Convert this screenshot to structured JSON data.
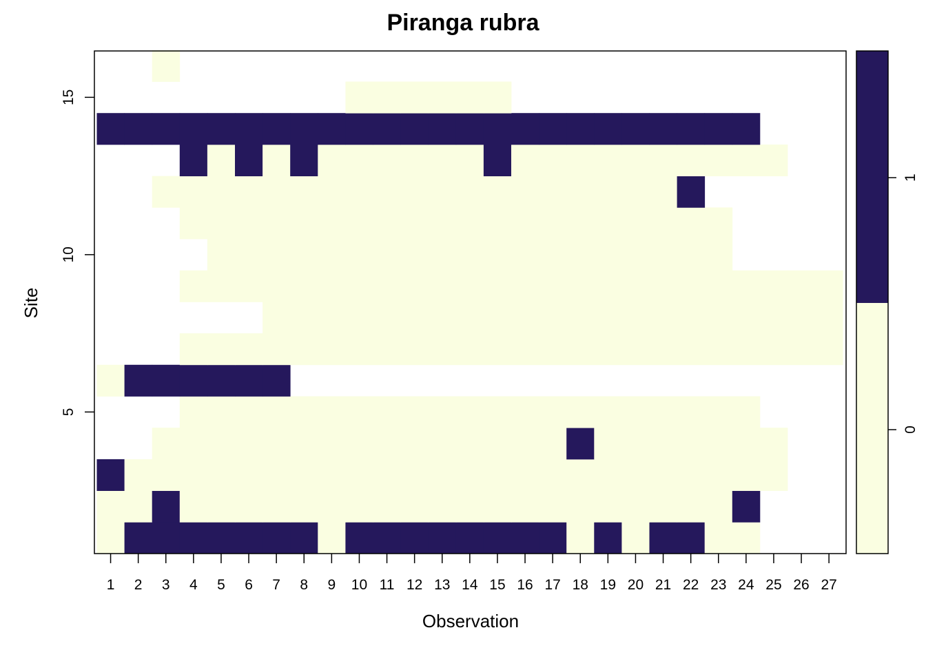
{
  "chart_data": {
    "type": "heatmap",
    "title": "Piranga rubra",
    "xlabel": "Observation",
    "ylabel": "Site",
    "x_categories": [
      1,
      2,
      3,
      4,
      5,
      6,
      7,
      8,
      9,
      10,
      11,
      12,
      13,
      14,
      15,
      16,
      17,
      18,
      19,
      20,
      21,
      22,
      23,
      24,
      25,
      26,
      27
    ],
    "x_tick_labels": [
      "1",
      "2",
      "3",
      "4",
      "5",
      "6",
      "7",
      "8",
      "9",
      "10",
      "11",
      "12",
      "13",
      "14",
      "15",
      "16",
      "17",
      "18",
      "19",
      "20",
      "21",
      "22",
      "23",
      "24",
      "25",
      "26",
      "27"
    ],
    "y_range": [
      1,
      16
    ],
    "y_tick_values": [
      5,
      10,
      15
    ],
    "y_tick_labels": [
      "5",
      "10",
      "15"
    ],
    "colors": {
      "0": "#FAFEE1",
      "1": "#25185C",
      "missing": "#FFFFFF"
    },
    "legend": {
      "placement": "right",
      "ticks": [
        {
          "value": 0,
          "label": "0"
        },
        {
          "value": 1,
          "label": "1"
        }
      ]
    },
    "grid": false,
    "note_values": "rows listed by site 1..16; null = not observed (blank)",
    "values": [
      [
        0,
        1,
        1,
        1,
        1,
        1,
        1,
        1,
        0,
        1,
        1,
        1,
        1,
        1,
        1,
        1,
        1,
        0,
        1,
        0,
        1,
        1,
        0,
        0,
        null,
        null,
        null
      ],
      [
        0,
        0,
        1,
        0,
        0,
        0,
        0,
        0,
        0,
        0,
        0,
        0,
        0,
        0,
        0,
        0,
        0,
        0,
        0,
        0,
        0,
        0,
        0,
        1,
        null,
        null,
        null
      ],
      [
        1,
        0,
        0,
        0,
        0,
        0,
        0,
        0,
        0,
        0,
        0,
        0,
        0,
        0,
        0,
        0,
        0,
        0,
        0,
        0,
        0,
        0,
        0,
        0,
        0,
        null,
        null
      ],
      [
        null,
        null,
        0,
        0,
        0,
        0,
        0,
        0,
        0,
        0,
        0,
        0,
        0,
        0,
        0,
        0,
        0,
        1,
        0,
        0,
        0,
        0,
        0,
        0,
        0,
        null,
        null
      ],
      [
        null,
        null,
        null,
        0,
        0,
        0,
        0,
        0,
        0,
        0,
        0,
        0,
        0,
        0,
        0,
        0,
        0,
        0,
        0,
        0,
        0,
        0,
        0,
        0,
        null,
        null,
        null
      ],
      [
        0,
        1,
        1,
        1,
        1,
        1,
        1,
        null,
        null,
        null,
        null,
        null,
        null,
        null,
        null,
        null,
        null,
        null,
        null,
        null,
        null,
        null,
        null,
        null,
        null,
        null,
        null
      ],
      [
        null,
        null,
        null,
        0,
        0,
        0,
        0,
        0,
        0,
        0,
        0,
        0,
        0,
        0,
        0,
        0,
        0,
        0,
        0,
        0,
        0,
        0,
        0,
        0,
        0,
        0,
        0
      ],
      [
        null,
        null,
        null,
        null,
        null,
        null,
        0,
        0,
        0,
        0,
        0,
        0,
        0,
        0,
        0,
        0,
        0,
        0,
        0,
        0,
        0,
        0,
        0,
        0,
        0,
        0,
        0
      ],
      [
        null,
        null,
        null,
        0,
        0,
        0,
        0,
        0,
        0,
        0,
        0,
        0,
        0,
        0,
        0,
        0,
        0,
        0,
        0,
        0,
        0,
        0,
        0,
        0,
        0,
        0,
        0
      ],
      [
        null,
        null,
        null,
        null,
        0,
        0,
        0,
        0,
        0,
        0,
        0,
        0,
        0,
        0,
        0,
        0,
        0,
        0,
        0,
        0,
        0,
        0,
        0,
        null,
        null,
        null,
        null
      ],
      [
        null,
        null,
        null,
        0,
        0,
        0,
        0,
        0,
        0,
        0,
        0,
        0,
        0,
        0,
        0,
        0,
        0,
        0,
        0,
        0,
        0,
        0,
        0,
        null,
        null,
        null,
        null
      ],
      [
        null,
        null,
        0,
        0,
        0,
        0,
        0,
        0,
        0,
        0,
        0,
        0,
        0,
        0,
        0,
        0,
        0,
        0,
        0,
        0,
        0,
        1,
        null,
        null,
        null,
        null,
        null
      ],
      [
        null,
        null,
        null,
        1,
        0,
        1,
        0,
        1,
        0,
        0,
        0,
        0,
        0,
        0,
        1,
        0,
        0,
        0,
        0,
        0,
        0,
        0,
        0,
        0,
        0,
        null,
        null
      ],
      [
        1,
        1,
        1,
        1,
        1,
        1,
        1,
        1,
        1,
        1,
        1,
        1,
        1,
        1,
        1,
        1,
        1,
        1,
        1,
        1,
        1,
        1,
        1,
        1,
        null,
        null,
        null
      ],
      [
        null,
        null,
        null,
        null,
        null,
        null,
        null,
        null,
        null,
        0,
        0,
        0,
        0,
        0,
        0,
        null,
        null,
        null,
        null,
        null,
        null,
        null,
        null,
        null,
        null,
        null,
        null
      ],
      [
        null,
        null,
        0,
        null,
        null,
        null,
        null,
        null,
        null,
        null,
        null,
        null,
        null,
        null,
        null,
        null,
        null,
        null,
        null,
        null,
        null,
        null,
        null,
        null,
        null,
        null,
        null
      ]
    ]
  }
}
